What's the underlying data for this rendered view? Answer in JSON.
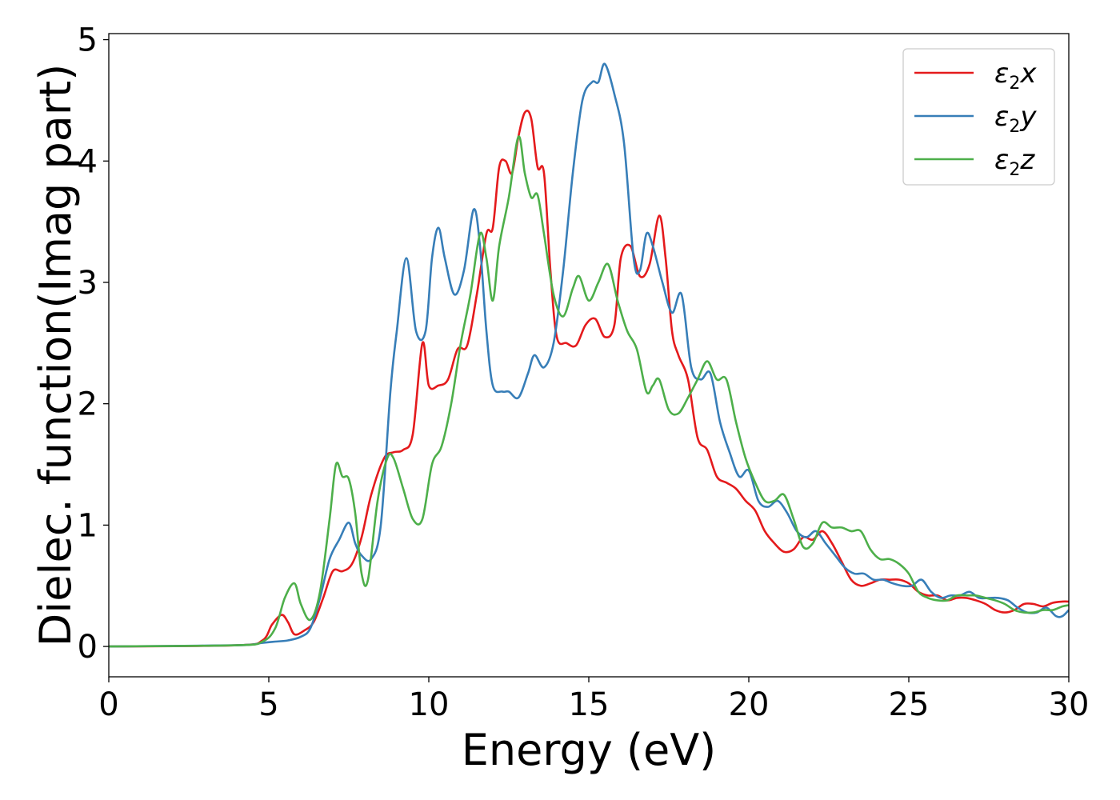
{
  "chart_data": {
    "type": "line",
    "xlabel": "Energy (eV)",
    "ylabel": "Dielec. function(Imag part)",
    "xlim": [
      0,
      30
    ],
    "ylim": [
      -0.25,
      5.05
    ],
    "xticks": [
      "0",
      "5",
      "10",
      "15",
      "20",
      "25",
      "30"
    ],
    "yticks": [
      "0",
      "1",
      "2",
      "3",
      "4",
      "5"
    ],
    "grid": false,
    "legend_position": "top-right",
    "series": [
      {
        "name": "ε2x",
        "legend": {
          "symbol": "ε",
          "sub": "2",
          "axis": "x"
        },
        "color": "#e41a1c",
        "x": [
          0,
          4,
          4.8,
          5.1,
          5.4,
          5.6,
          5.8,
          6.1,
          6.4,
          6.7,
          7.0,
          7.3,
          7.6,
          7.9,
          8.2,
          8.6,
          8.9,
          9.2,
          9.5,
          9.8,
          10.0,
          10.3,
          10.6,
          10.9,
          11.2,
          11.5,
          11.8,
          12.0,
          12.2,
          12.4,
          12.6,
          12.8,
          13.0,
          13.2,
          13.4,
          13.6,
          13.8,
          14.0,
          14.3,
          14.6,
          14.9,
          15.2,
          15.5,
          15.8,
          16.0,
          16.3,
          16.6,
          16.9,
          17.2,
          17.4,
          17.6,
          17.8,
          18.1,
          18.4,
          18.7,
          19.0,
          19.3,
          19.6,
          19.9,
          20.2,
          20.5,
          20.8,
          21.1,
          21.4,
          21.7,
          22.0,
          22.3,
          22.6,
          22.9,
          23.2,
          23.5,
          23.8,
          24.1,
          24.4,
          24.7,
          25.0,
          25.3,
          25.6,
          25.9,
          26.2,
          26.5,
          26.8,
          27.1,
          27.4,
          27.7,
          28.0,
          28.3,
          28.6,
          28.9,
          29.2,
          29.5,
          29.8,
          30.0
        ],
        "values": [
          0,
          0.01,
          0.05,
          0.18,
          0.26,
          0.2,
          0.1,
          0.13,
          0.2,
          0.4,
          0.62,
          0.62,
          0.68,
          0.9,
          1.25,
          1.55,
          1.6,
          1.62,
          1.75,
          2.5,
          2.15,
          2.15,
          2.2,
          2.45,
          2.48,
          2.9,
          3.4,
          3.45,
          3.95,
          4.0,
          3.9,
          4.2,
          4.4,
          4.35,
          3.95,
          3.9,
          3.1,
          2.55,
          2.5,
          2.48,
          2.65,
          2.7,
          2.55,
          2.65,
          3.2,
          3.3,
          3.05,
          3.15,
          3.55,
          3.2,
          2.6,
          2.4,
          2.2,
          1.72,
          1.62,
          1.4,
          1.35,
          1.3,
          1.2,
          1.12,
          0.95,
          0.85,
          0.78,
          0.8,
          0.9,
          0.88,
          0.95,
          0.85,
          0.7,
          0.55,
          0.5,
          0.52,
          0.55,
          0.55,
          0.55,
          0.52,
          0.45,
          0.42,
          0.42,
          0.38,
          0.4,
          0.4,
          0.38,
          0.35,
          0.3,
          0.28,
          0.3,
          0.35,
          0.35,
          0.33,
          0.36,
          0.37,
          0.37
        ]
      },
      {
        "name": "ε2y",
        "legend": {
          "symbol": "ε",
          "sub": "2",
          "axis": "y"
        },
        "color": "#377eb8",
        "x": [
          0,
          4,
          4.8,
          5.2,
          5.6,
          6.0,
          6.3,
          6.6,
          6.9,
          7.2,
          7.5,
          7.7,
          7.9,
          8.2,
          8.5,
          8.8,
          9.0,
          9.3,
          9.6,
          9.9,
          10.1,
          10.3,
          10.5,
          10.8,
          11.1,
          11.4,
          11.6,
          11.8,
          12.0,
          12.3,
          12.5,
          12.8,
          13.1,
          13.3,
          13.6,
          13.9,
          14.2,
          14.5,
          14.8,
          15.1,
          15.3,
          15.5,
          15.8,
          16.1,
          16.4,
          16.6,
          16.8,
          17.0,
          17.3,
          17.6,
          17.9,
          18.2,
          18.5,
          18.8,
          19.1,
          19.4,
          19.7,
          20.0,
          20.3,
          20.6,
          20.9,
          21.2,
          21.5,
          21.8,
          22.1,
          22.4,
          22.7,
          23.0,
          23.3,
          23.6,
          23.9,
          24.2,
          24.5,
          24.8,
          25.1,
          25.4,
          25.7,
          26.0,
          26.3,
          26.6,
          26.9,
          27.2,
          27.5,
          27.8,
          28.1,
          28.4,
          28.7,
          29.0,
          29.3,
          29.6,
          29.8,
          30.0
        ],
        "values": [
          0,
          0.01,
          0.03,
          0.04,
          0.05,
          0.08,
          0.15,
          0.4,
          0.72,
          0.88,
          1.02,
          0.85,
          0.75,
          0.72,
          1.0,
          2.1,
          2.6,
          3.2,
          2.6,
          2.6,
          3.2,
          3.45,
          3.2,
          2.9,
          3.1,
          3.6,
          3.3,
          2.6,
          2.15,
          2.1,
          2.1,
          2.05,
          2.25,
          2.4,
          2.3,
          2.5,
          3.1,
          3.9,
          4.5,
          4.65,
          4.65,
          4.8,
          4.55,
          4.15,
          3.2,
          3.1,
          3.4,
          3.3,
          3.0,
          2.75,
          2.9,
          2.3,
          2.2,
          2.25,
          1.85,
          1.6,
          1.4,
          1.45,
          1.2,
          1.15,
          1.2,
          1.1,
          0.95,
          0.9,
          0.95,
          0.85,
          0.75,
          0.65,
          0.6,
          0.6,
          0.55,
          0.55,
          0.52,
          0.5,
          0.5,
          0.55,
          0.45,
          0.4,
          0.42,
          0.42,
          0.45,
          0.4,
          0.4,
          0.4,
          0.38,
          0.32,
          0.28,
          0.28,
          0.32,
          0.25,
          0.25,
          0.3
        ]
      },
      {
        "name": "ε2z",
        "legend": {
          "symbol": "ε",
          "sub": "2",
          "axis": "z"
        },
        "color": "#4daf4a",
        "x": [
          0,
          4,
          4.8,
          5.2,
          5.5,
          5.8,
          6.0,
          6.3,
          6.6,
          6.9,
          7.1,
          7.3,
          7.5,
          7.7,
          7.9,
          8.1,
          8.4,
          8.7,
          8.9,
          9.2,
          9.5,
          9.8,
          10.1,
          10.4,
          10.7,
          11.0,
          11.3,
          11.6,
          11.8,
          12.0,
          12.2,
          12.5,
          12.8,
          13.0,
          13.2,
          13.4,
          13.6,
          13.9,
          14.2,
          14.5,
          14.7,
          15.0,
          15.3,
          15.6,
          15.9,
          16.2,
          16.5,
          16.8,
          17.0,
          17.2,
          17.5,
          17.8,
          18.1,
          18.4,
          18.7,
          19.0,
          19.3,
          19.6,
          19.9,
          20.2,
          20.5,
          20.8,
          21.1,
          21.4,
          21.7,
          22.0,
          22.3,
          22.6,
          22.9,
          23.2,
          23.5,
          23.8,
          24.1,
          24.4,
          24.7,
          25.0,
          25.3,
          25.6,
          25.9,
          26.2,
          26.5,
          26.8,
          27.1,
          27.4,
          27.7,
          28.0,
          28.3,
          28.6,
          28.9,
          29.2,
          29.5,
          29.8,
          30.0
        ],
        "values": [
          0,
          0.01,
          0.04,
          0.15,
          0.4,
          0.52,
          0.35,
          0.22,
          0.45,
          1.05,
          1.5,
          1.4,
          1.38,
          1.1,
          0.6,
          0.55,
          1.2,
          1.55,
          1.55,
          1.3,
          1.05,
          1.05,
          1.5,
          1.65,
          2.0,
          2.5,
          2.9,
          3.4,
          3.2,
          2.85,
          3.3,
          3.7,
          4.2,
          3.9,
          3.7,
          3.72,
          3.4,
          2.9,
          2.72,
          2.95,
          3.05,
          2.85,
          3.0,
          3.15,
          2.85,
          2.6,
          2.45,
          2.1,
          2.15,
          2.2,
          1.95,
          1.92,
          2.05,
          2.2,
          2.35,
          2.2,
          2.2,
          1.85,
          1.55,
          1.35,
          1.2,
          1.2,
          1.25,
          1.05,
          0.82,
          0.85,
          1.02,
          0.98,
          0.98,
          0.95,
          0.95,
          0.8,
          0.72,
          0.72,
          0.68,
          0.6,
          0.45,
          0.4,
          0.38,
          0.38,
          0.42,
          0.42,
          0.42,
          0.4,
          0.38,
          0.35,
          0.3,
          0.28,
          0.28,
          0.3,
          0.3,
          0.33,
          0.34
        ]
      }
    ]
  }
}
